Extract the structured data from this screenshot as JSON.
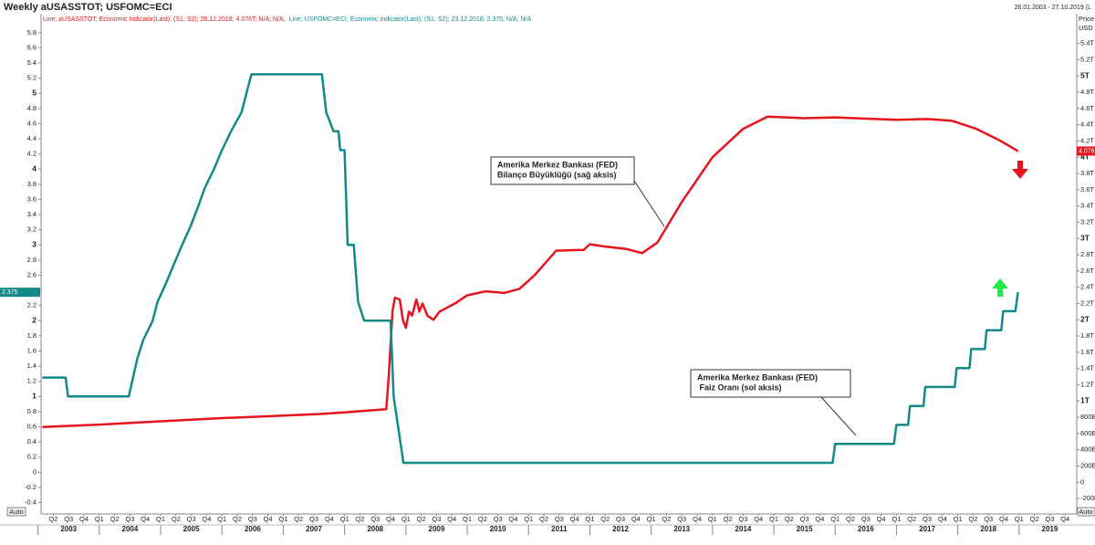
{
  "chart_data": {
    "type": "line",
    "title": "Weekly aUSASSTOT; USFOMC=ECI",
    "date_range": "26.01.2003 - 27.10.2019 (L",
    "y2_axis_title": [
      "Price",
      "USD"
    ],
    "auto_buttons": [
      "Auto",
      "Auto"
    ],
    "grid": false,
    "xlim": [
      2003.05,
      2019.94
    ],
    "ylim": [
      -0.55,
      5.99
    ],
    "y2lim": [
      -0.39,
      5.71
    ],
    "yticks": [
      -0.4,
      -0.2,
      0,
      0.2,
      0.4,
      0.6,
      0.8,
      1,
      1.2,
      1.4,
      1.6,
      1.8,
      2,
      2.2,
      2.4,
      2.6,
      2.8,
      3,
      3.2,
      3.4,
      3.6,
      3.8,
      4,
      4.2,
      4.4,
      4.6,
      4.8,
      5,
      5.2,
      5.4,
      5.6,
      5.8
    ],
    "y2ticks": [
      {
        "value": -0.2,
        "label": "-200B"
      },
      0,
      {
        "value": 0.2,
        "label": "200B"
      },
      {
        "value": 0.4,
        "label": "400B"
      },
      {
        "value": 0.6,
        "label": "600B"
      },
      {
        "value": 0.8,
        "label": "800B"
      },
      {
        "value": 1,
        "label": "1T"
      },
      {
        "value": 1.2,
        "label": "1.2T"
      },
      {
        "value": 1.4,
        "label": "1.4T"
      },
      {
        "value": 1.6,
        "label": "1.6T"
      },
      {
        "value": 1.8,
        "label": "1.8T"
      },
      {
        "value": 2,
        "label": "2T"
      },
      {
        "value": 2.2,
        "label": "2.2T"
      },
      {
        "value": 2.4,
        "label": "2.4T"
      },
      {
        "value": 2.6,
        "label": "2.6T"
      },
      {
        "value": 2.8,
        "label": "2.8T"
      },
      {
        "value": 3,
        "label": "3T"
      },
      {
        "value": 3.2,
        "label": "3.2T"
      },
      {
        "value": 3.4,
        "label": "3.4T"
      },
      {
        "value": 3.6,
        "label": "3.6T"
      },
      {
        "value": 3.8,
        "label": "3.8T"
      },
      {
        "value": 4,
        "label": "4T"
      },
      {
        "value": 4.2,
        "label": "4.2T"
      },
      {
        "value": 4.4,
        "label": "4.4T"
      },
      {
        "value": 4.6,
        "label": "4.6T"
      },
      {
        "value": 4.8,
        "label": "4.8T"
      },
      {
        "value": 5,
        "label": "5T"
      },
      {
        "value": 5.2,
        "label": "5.2T"
      },
      {
        "value": 5.4,
        "label": "5.4T"
      }
    ],
    "xticks": [
      {
        "value": 2003.25,
        "label": "Q2"
      },
      {
        "value": 2003.5,
        "label": "Q3"
      },
      {
        "value": 2003.75,
        "label": "Q4"
      },
      {
        "value": 2004,
        "label": "Q1"
      },
      {
        "value": 2004.25,
        "label": "Q2"
      },
      {
        "value": 2004.5,
        "label": "Q3"
      },
      {
        "value": 2004.75,
        "label": "Q4"
      },
      {
        "value": 2005,
        "label": "Q1"
      },
      {
        "value": 2005.25,
        "label": "Q2"
      },
      {
        "value": 2005.5,
        "label": "Q3"
      },
      {
        "value": 2005.75,
        "label": "Q4"
      },
      {
        "value": 2006,
        "label": "Q1"
      },
      {
        "value": 2006.25,
        "label": "Q2"
      },
      {
        "value": 2006.5,
        "label": "Q3"
      },
      {
        "value": 2006.75,
        "label": "Q4"
      },
      {
        "value": 2007,
        "label": "Q1"
      },
      {
        "value": 2007.25,
        "label": "Q2"
      },
      {
        "value": 2007.5,
        "label": "Q3"
      },
      {
        "value": 2007.75,
        "label": "Q4"
      },
      {
        "value": 2008,
        "label": "Q1"
      },
      {
        "value": 2008.25,
        "label": "Q2"
      },
      {
        "value": 2008.5,
        "label": "Q3"
      },
      {
        "value": 2008.75,
        "label": "Q4"
      },
      {
        "value": 2009,
        "label": "Q1"
      },
      {
        "value": 2009.25,
        "label": "Q2"
      },
      {
        "value": 2009.5,
        "label": "Q3"
      },
      {
        "value": 2009.75,
        "label": "Q4"
      },
      {
        "value": 2010,
        "label": "Q1"
      },
      {
        "value": 2010.25,
        "label": "Q2"
      },
      {
        "value": 2010.5,
        "label": "Q3"
      },
      {
        "value": 2010.75,
        "label": "Q4"
      },
      {
        "value": 2011,
        "label": "Q1"
      },
      {
        "value": 2011.25,
        "label": "Q2"
      },
      {
        "value": 2011.5,
        "label": "Q3"
      },
      {
        "value": 2011.75,
        "label": "Q4"
      },
      {
        "value": 2012,
        "label": "Q1"
      },
      {
        "value": 2012.25,
        "label": "Q2"
      },
      {
        "value": 2012.5,
        "label": "Q3"
      },
      {
        "value": 2012.75,
        "label": "Q4"
      },
      {
        "value": 2013,
        "label": "Q1"
      },
      {
        "value": 2013.25,
        "label": "Q2"
      },
      {
        "value": 2013.5,
        "label": "Q3"
      },
      {
        "value": 2013.75,
        "label": "Q4"
      },
      {
        "value": 2014,
        "label": "Q1"
      },
      {
        "value": 2014.25,
        "label": "Q2"
      },
      {
        "value": 2014.5,
        "label": "Q3"
      },
      {
        "value": 2014.75,
        "label": "Q4"
      },
      {
        "value": 2015,
        "label": "Q1"
      },
      {
        "value": 2015.25,
        "label": "Q2"
      },
      {
        "value": 2015.5,
        "label": "Q3"
      },
      {
        "value": 2015.75,
        "label": "Q4"
      },
      {
        "value": 2016,
        "label": "Q1"
      },
      {
        "value": 2016.25,
        "label": "Q2"
      },
      {
        "value": 2016.5,
        "label": "Q3"
      },
      {
        "value": 2016.75,
        "label": "Q4"
      },
      {
        "value": 2017,
        "label": "Q1"
      },
      {
        "value": 2017.25,
        "label": "Q2"
      },
      {
        "value": 2017.5,
        "label": "Q3"
      },
      {
        "value": 2017.75,
        "label": "Q4"
      },
      {
        "value": 2018,
        "label": "Q1"
      },
      {
        "value": 2018.25,
        "label": "Q2"
      },
      {
        "value": 2018.5,
        "label": "Q3"
      },
      {
        "value": 2018.75,
        "label": "Q4"
      },
      {
        "value": 2019,
        "label": "Q1"
      },
      {
        "value": 2019.25,
        "label": "Q2"
      },
      {
        "value": 2019.5,
        "label": "Q3"
      },
      {
        "value": 2019.75,
        "label": "Q4"
      }
    ],
    "year_ticks": [
      2003,
      2004,
      2005,
      2006,
      2007,
      2008,
      2009,
      2010,
      2011,
      2012,
      2013,
      2014,
      2015,
      2016,
      2017,
      2018,
      2019
    ],
    "series": [
      {
        "name": "Line; aUSASSTOT; Economic Indicator(Last); (S1; S2); 26.12.2018; 4.076T; N/A; N/A;",
        "color": "#e8141b",
        "axis": "y2",
        "last_value_label": "4.076T",
        "x": [
          2003.07,
          2004.0,
          2005.0,
          2006.0,
          2007.0,
          2007.6,
          2008.0,
          2008.68,
          2008.72,
          2008.78,
          2008.82,
          2008.9,
          2008.95,
          2009.0,
          2009.05,
          2009.1,
          2009.17,
          2009.22,
          2009.27,
          2009.35,
          2009.45,
          2009.55,
          2009.8,
          2010.0,
          2010.3,
          2010.6,
          2010.85,
          2011.1,
          2011.45,
          2011.9,
          2012.0,
          2012.25,
          2012.6,
          2012.85,
          2013.1,
          2013.5,
          2014.0,
          2014.5,
          2014.9,
          2015.5,
          2016.0,
          2017.0,
          2017.5,
          2017.9,
          2018.3,
          2018.7,
          2018.98
        ],
        "values": [
          0.68,
          0.71,
          0.75,
          0.79,
          0.82,
          0.84,
          0.86,
          0.9,
          1.3,
          2.1,
          2.27,
          2.25,
          2.0,
          1.9,
          2.1,
          2.05,
          2.25,
          2.1,
          2.2,
          2.05,
          2.0,
          2.1,
          2.2,
          2.3,
          2.35,
          2.33,
          2.38,
          2.55,
          2.85,
          2.86,
          2.93,
          2.9,
          2.87,
          2.82,
          2.95,
          3.45,
          4.0,
          4.35,
          4.5,
          4.48,
          4.49,
          4.46,
          4.47,
          4.45,
          4.35,
          4.2,
          4.076
        ]
      },
      {
        "name": "Line; USFOMC=ECI; Economic Indicator(Last); (S1; S2); 23.12.2018; 2.375; N/A; N/A",
        "color": "#138a8a",
        "axis": "y",
        "last_value_label": "2.375",
        "x": [
          2003.07,
          2003.45,
          2003.49,
          2004.48,
          2004.62,
          2004.72,
          2004.87,
          2004.95,
          2005.09,
          2005.22,
          2005.35,
          2005.49,
          2005.61,
          2005.72,
          2005.87,
          2006.0,
          2006.15,
          2006.32,
          2006.48,
          2007.63,
          2007.7,
          2007.82,
          2007.9,
          2007.93,
          2008.0,
          2008.05,
          2008.15,
          2008.22,
          2008.32,
          2008.75,
          2008.8,
          2008.96,
          2015.96,
          2016.0,
          2016.96,
          2017.0,
          2017.19,
          2017.22,
          2017.44,
          2017.47,
          2017.95,
          2017.98,
          2018.19,
          2018.22,
          2018.44,
          2018.47,
          2018.71,
          2018.74,
          2018.94,
          2018.98
        ],
        "values": [
          1.25,
          1.25,
          1.0,
          1.0,
          1.5,
          1.75,
          2.0,
          2.25,
          2.5,
          2.75,
          3.0,
          3.25,
          3.5,
          3.75,
          4.0,
          4.25,
          4.5,
          4.75,
          5.25,
          5.25,
          4.75,
          4.5,
          4.5,
          4.25,
          4.25,
          3.0,
          3.0,
          2.25,
          2.0,
          2.0,
          1.0,
          0.125,
          0.125,
          0.375,
          0.375,
          0.625,
          0.625,
          0.875,
          0.875,
          1.125,
          1.125,
          1.375,
          1.375,
          1.625,
          1.625,
          1.875,
          1.875,
          2.125,
          2.125,
          2.375
        ]
      }
    ],
    "annotations": [
      {
        "lines": [
          "Amerika Merkez Bankası (FED)",
          "Bilanço Büyüklüğü (sağ aksis)"
        ]
      },
      {
        "lines": [
          "Amerika Merkez Bankası (FED)",
          " Faiz Oranı (sol aksis)"
        ]
      }
    ]
  }
}
